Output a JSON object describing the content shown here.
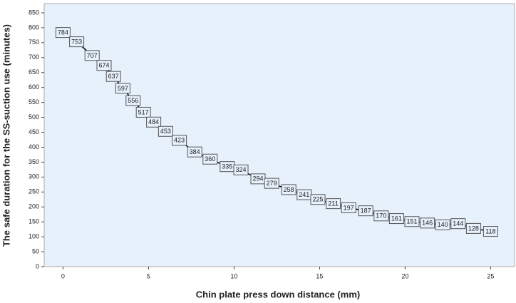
{
  "chart_data": {
    "type": "line",
    "x_label": "Chin plate press down distance (mm)",
    "y_label": "The safe duration for the SS-suction use (minutes)",
    "x": [
      0,
      0.8,
      1.7,
      2.4,
      2.95,
      3.5,
      4.1,
      4.7,
      5.3,
      6.0,
      6.8,
      7.7,
      8.6,
      9.6,
      10.4,
      11.4,
      12.2,
      13.2,
      14.1,
      14.9,
      15.8,
      16.7,
      17.7,
      18.6,
      19.5,
      20.4,
      21.3,
      22.2,
      23.1,
      24.0,
      25.0
    ],
    "series": [
      {
        "color": "#000000",
        "values": [
          784,
          753,
          707,
          674,
          637,
          597,
          556,
          517,
          484,
          453,
          423,
          384,
          360,
          335,
          324,
          294,
          279,
          258,
          241,
          225,
          211,
          197,
          187,
          170,
          161,
          151,
          146,
          140,
          144,
          128,
          118
        ]
      }
    ],
    "xlim": [
      -1.1,
      26.4
    ],
    "xticks": [
      0,
      5,
      10,
      15,
      20,
      25
    ],
    "ylim": [
      0,
      881
    ],
    "yticks": [
      0,
      50,
      100,
      150,
      200,
      250,
      300,
      350,
      400,
      450,
      500,
      550,
      600,
      650,
      700,
      750,
      800,
      850
    ],
    "background": "#e6f1fc"
  }
}
